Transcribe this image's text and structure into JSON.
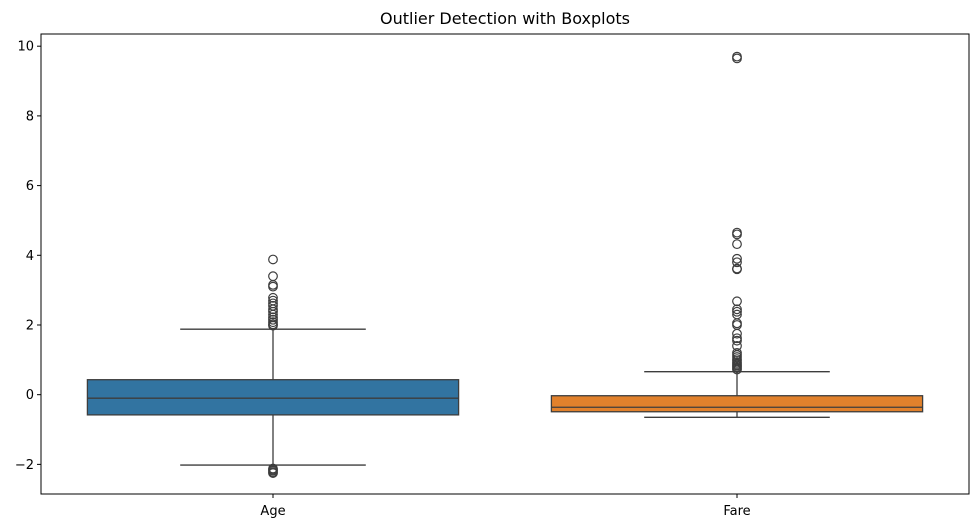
{
  "chart_data": {
    "type": "boxplot",
    "title": "Outlier Detection with Boxplots",
    "xlabel": "",
    "ylabel": "",
    "categories": [
      "Age",
      "Fare"
    ],
    "ylim": [
      -2.85,
      10.35
    ],
    "yticks": [
      -2,
      0,
      2,
      4,
      6,
      8,
      10
    ],
    "ytick_labels": [
      "−2",
      "0",
      "2",
      "4",
      "6",
      "8",
      "10"
    ],
    "grid": false,
    "legend": "none",
    "boxes": [
      {
        "category": "Age",
        "color": "#3274a1",
        "whisker_low": -2.02,
        "q1": -0.58,
        "median": -0.1,
        "q3": 0.43,
        "whisker_high": 1.88,
        "outliers": [
          -2.25,
          -2.22,
          -2.18,
          -2.15,
          -2.12,
          1.98,
          2.02,
          2.08,
          2.15,
          2.22,
          2.3,
          2.38,
          2.45,
          2.55,
          2.62,
          2.7,
          2.78,
          3.1,
          3.15,
          3.4,
          3.88
        ]
      },
      {
        "category": "Fare",
        "color": "#e1812c",
        "whisker_low": -0.65,
        "q1": -0.49,
        "median": -0.36,
        "q3": -0.03,
        "whisker_high": 0.66,
        "outliers": [
          0.72,
          0.76,
          0.8,
          0.84,
          0.88,
          0.92,
          0.97,
          1.02,
          1.08,
          1.14,
          1.2,
          1.4,
          1.55,
          1.62,
          1.75,
          2.0,
          2.05,
          2.3,
          2.38,
          2.45,
          2.68,
          3.6,
          3.62,
          3.8,
          3.9,
          4.32,
          4.6,
          4.65,
          9.65,
          9.7
        ]
      }
    ]
  }
}
